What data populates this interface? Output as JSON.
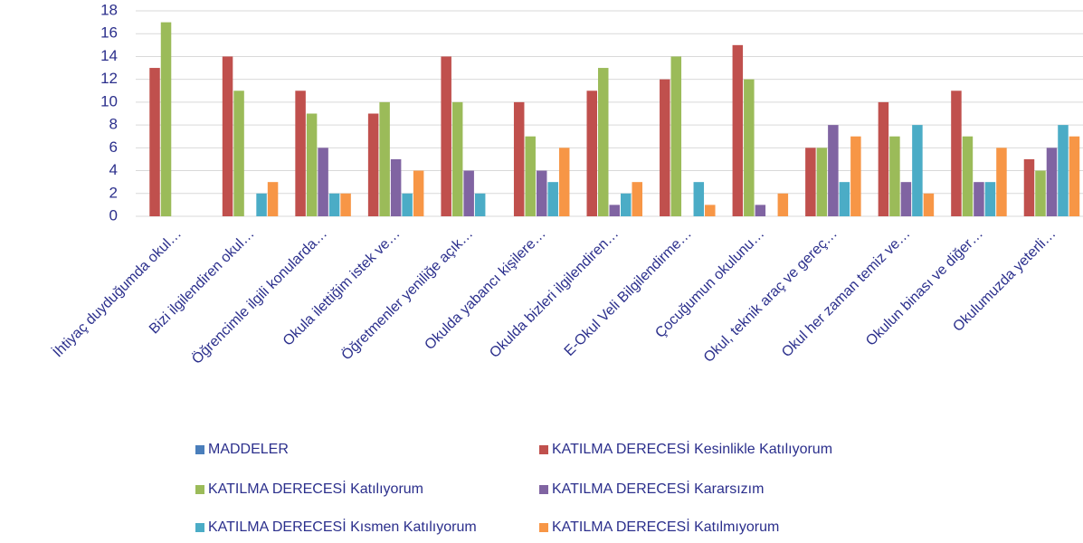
{
  "chart_data": {
    "type": "bar",
    "categories": [
      "İhtiyaç duyduğumda okul…",
      "Bizi ilgilendiren okul…",
      "Öğrencimle ilgili konularda…",
      "Okula ilettiğim istek ve…",
      "Öğretmenler yeniliğe açık…",
      "Okulda yabancı kişilere…",
      "Okulda bizleri ilgilendiren…",
      "E-Okul Veli Bilgilendirme…",
      "Çocuğumun okulunu…",
      "Okul, teknik araç ve gereç…",
      "Okul her zaman temiz ve…",
      "Okulun binası ve diğer…",
      "Okulumuzda yeterli…"
    ],
    "series": [
      {
        "name": "MADDELER",
        "color": "#4a7ebb",
        "values": [
          null,
          null,
          null,
          null,
          null,
          null,
          null,
          null,
          null,
          null,
          null,
          null,
          null
        ]
      },
      {
        "name": "KATILMA DERECESİ Kesinlikle Katılıyorum",
        "color": "#c0504d",
        "values": [
          13,
          14,
          11,
          9,
          14,
          10,
          11,
          12,
          15,
          6,
          10,
          11,
          5
        ]
      },
      {
        "name": "KATILMA DERECESİ Katılıyorum",
        "color": "#9bbb59",
        "values": [
          17,
          11,
          9,
          10,
          10,
          7,
          13,
          14,
          12,
          6,
          7,
          7,
          4
        ]
      },
      {
        "name": "KATILMA DERECESİ Kararsızım",
        "color": "#8064a2",
        "values": [
          0,
          0,
          6,
          5,
          4,
          4,
          1,
          0,
          1,
          8,
          3,
          3,
          6
        ]
      },
      {
        "name": "KATILMA DERECESİ Kısmen Katılıyorum",
        "color": "#4bacc6",
        "values": [
          0,
          2,
          2,
          2,
          2,
          3,
          2,
          3,
          0,
          3,
          8,
          3,
          8
        ]
      },
      {
        "name": "KATILMA DERECESİ Katılmıyorum",
        "color": "#f79646",
        "values": [
          0,
          3,
          2,
          4,
          0,
          6,
          3,
          1,
          2,
          7,
          2,
          6,
          7
        ]
      }
    ],
    "ylim": [
      0,
      18
    ],
    "yticks": [
      0,
      2,
      4,
      6,
      8,
      10,
      12,
      14,
      16,
      18
    ],
    "grid": true,
    "legend": "bottom"
  }
}
